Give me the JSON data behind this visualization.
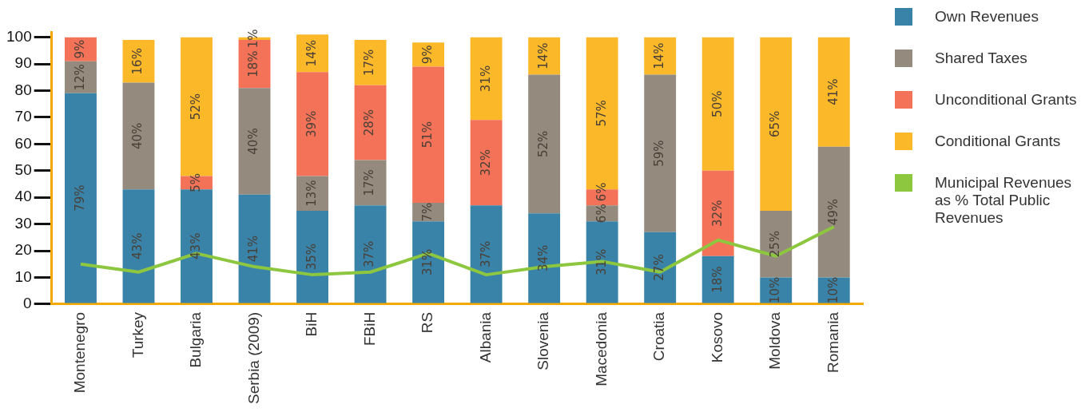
{
  "chart_data": {
    "type": "bar",
    "stacked": true,
    "categories": [
      "Montenegro",
      "Turkey",
      "Bulgaria",
      "Serbia (2009)",
      "BiH",
      "FBiH",
      "RS",
      "Albania",
      "Slovenia",
      "Macedonia",
      "Croatia",
      "Kosovo",
      "Moldova",
      "Romania"
    ],
    "ylim": [
      0,
      102
    ],
    "yticks": [
      0,
      10,
      20,
      30,
      40,
      50,
      60,
      70,
      80,
      90,
      100
    ],
    "grid": false,
    "legend": "right",
    "series": [
      {
        "name": "Own Revenues",
        "color": "#3a83a8",
        "values": [
          79,
          43,
          43,
          41,
          35,
          37,
          31,
          37,
          34,
          31,
          27,
          18,
          10,
          10
        ],
        "value_labels": [
          "79%",
          "43%",
          "43%",
          "41%",
          "35%",
          "37%",
          "31%",
          "37%",
          "34%",
          "31%",
          "27%",
          "18%",
          "10%",
          "10%"
        ]
      },
      {
        "name": "Shared Taxes",
        "color": "#948a7d",
        "values": [
          12,
          40,
          null,
          40,
          13,
          17,
          7,
          null,
          52,
          6,
          59,
          null,
          25,
          49
        ],
        "value_labels": [
          "12%",
          "40%",
          null,
          "40%",
          "13%",
          "17%",
          "7%",
          null,
          "52%",
          "6%",
          "59%",
          null,
          "25%",
          "49%"
        ]
      },
      {
        "name": "Unconditional Grants",
        "color": "#f47257",
        "values": [
          9,
          null,
          5,
          18,
          39,
          28,
          51,
          32,
          null,
          6,
          null,
          32,
          null,
          null
        ],
        "value_labels": [
          "9%",
          null,
          "5%",
          "18%",
          "39%",
          "28%",
          "51%",
          "32%",
          null,
          "6%",
          null,
          "32%",
          null,
          null
        ]
      },
      {
        "name": "Conditional Grants",
        "color": "#fbb829",
        "values": [
          null,
          16,
          52,
          1,
          14,
          17,
          9,
          31,
          14,
          57,
          14,
          50,
          65,
          41
        ],
        "value_labels": [
          null,
          "16%",
          "52%",
          "1%",
          "14%",
          "17%",
          "9%",
          "31%",
          "14%",
          "57%",
          "14%",
          "50%",
          "65%",
          "41%"
        ]
      },
      {
        "name": "Municipal Revenues as % Total Public Revenues",
        "type": "line",
        "color": "#8dc63f",
        "values": [
          15,
          12,
          19,
          14,
          11,
          12,
          19,
          11,
          14,
          16,
          12,
          24,
          18,
          29
        ]
      }
    ]
  }
}
